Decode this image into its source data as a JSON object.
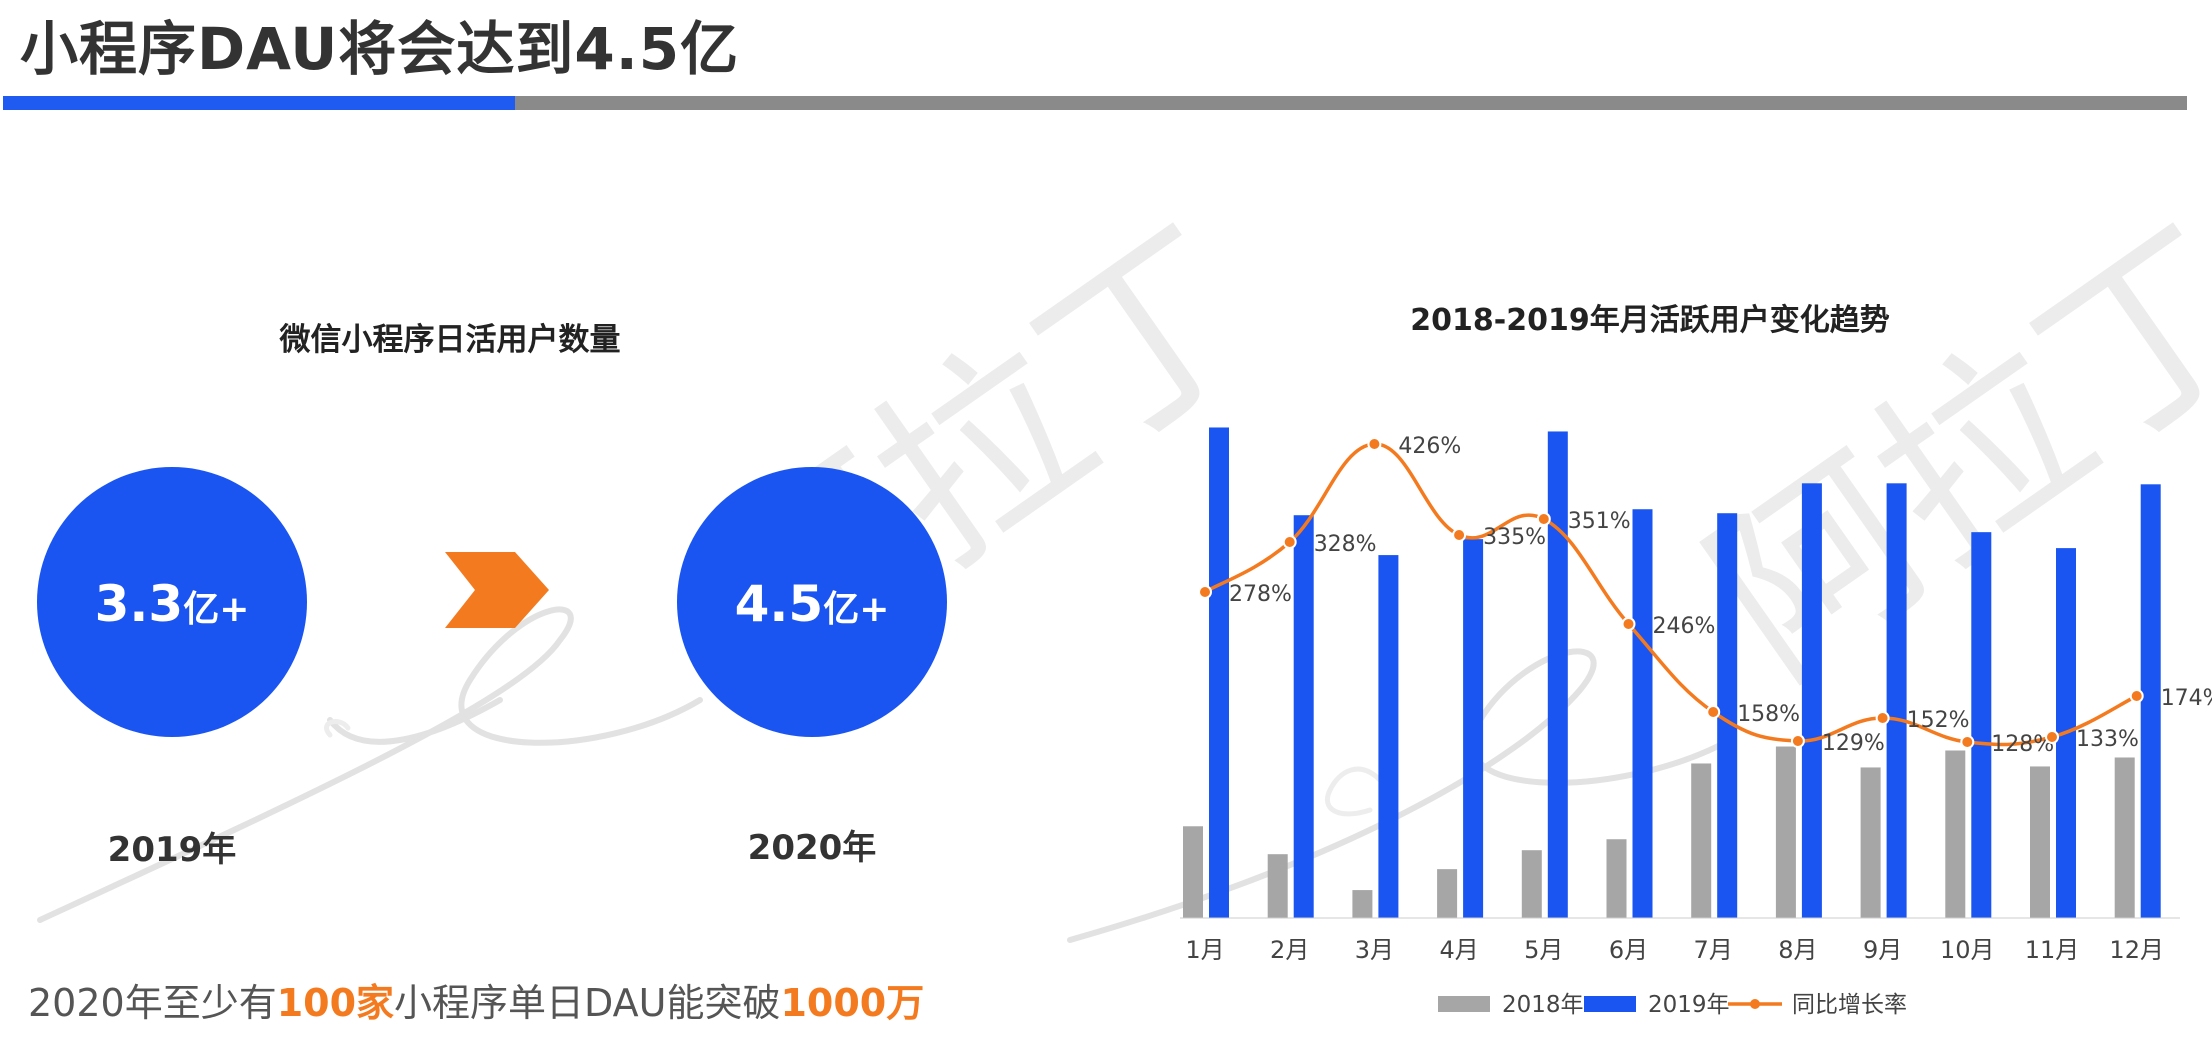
{
  "page_title": "小程序DAU将会达到4.5亿",
  "left_panel": {
    "subtitle": "微信小程序日活用户数量",
    "circles": [
      {
        "value": "3.3",
        "suffix": "亿+",
        "year": "2019年"
      },
      {
        "value": "4.5",
        "suffix": "亿+",
        "year": "2020年"
      }
    ]
  },
  "footer": {
    "part1": "2020年至少有",
    "highlight1": "100家",
    "part2": "小程序单日DAU能突破",
    "highlight2": "1000万"
  },
  "watermark_text": "阿拉丁",
  "colors": {
    "accent_blue": "#1a55f2",
    "gray_bar": "#a6a6a6",
    "orange": "#f47a1f",
    "rule_gray": "#8a8a8a"
  },
  "chart_data": {
    "type": "bar",
    "title": "2018-2019年月活跃用户变化趋势",
    "categories": [
      "1月",
      "2月",
      "3月",
      "4月",
      "5月",
      "6月",
      "7月",
      "8月",
      "9月",
      "10月",
      "11月",
      "12月"
    ],
    "series": [
      {
        "name": "2018年",
        "type": "bar",
        "values": [
          92,
          64,
          28,
          49,
          68,
          79,
          155,
          172,
          151,
          168,
          152,
          161
        ],
        "color": "#a6a6a6"
      },
      {
        "name": "2019年",
        "type": "bar",
        "values": [
          492,
          404,
          364,
          380,
          488,
          410,
          406,
          436,
          436,
          387,
          371,
          435
        ],
        "color": "#1a55f2"
      },
      {
        "name": "同比增长率",
        "type": "line",
        "smooth": true,
        "values": [
          278,
          328,
          426,
          335,
          351,
          246,
          158,
          129,
          152,
          128,
          133,
          174
        ],
        "data_labels": [
          "278%",
          "328%",
          "426%",
          "335%",
          "351%",
          "246%",
          "158%",
          "129%",
          "152%",
          "128%",
          "133%",
          "174%"
        ],
        "color": "#f47a1f"
      }
    ],
    "bar_ylim": [
      0,
      500
    ],
    "line_ylim": [
      -130,
      470
    ],
    "gridlines": false,
    "legend_position": "bottom"
  }
}
